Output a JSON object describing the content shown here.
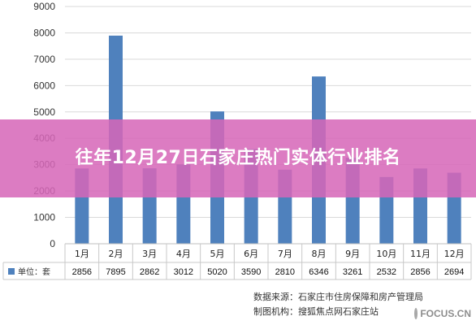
{
  "banner": {
    "title": "往年12月27日石家庄热门实体行业排名"
  },
  "chart_data": {
    "type": "bar",
    "categories": [
      "1月",
      "2月",
      "3月",
      "4月",
      "5月",
      "6月",
      "7月",
      "8月",
      "9月",
      "10月",
      "11月",
      "12月"
    ],
    "series": [
      {
        "name": "单位：套",
        "values": [
          2856,
          7895,
          2862,
          3012,
          5020,
          3590,
          2810,
          6346,
          3261,
          2532,
          2856,
          2694
        ]
      }
    ],
    "ylim": [
      0,
      9000
    ],
    "yticks": [
      0,
      1000,
      2000,
      3000,
      4000,
      5000,
      6000,
      7000,
      8000,
      9000
    ],
    "grid": true,
    "bar_color": "#4f81bd",
    "legend": "table-bottom",
    "data_table": true
  },
  "footer": {
    "source": "数据来源：石家庄市住房保障和房产管理局",
    "producer": "制图机构：搜狐焦点网石家庄站"
  },
  "watermark": {
    "text": "FOCUS.CN",
    "icon": "focus-logo-icon"
  }
}
